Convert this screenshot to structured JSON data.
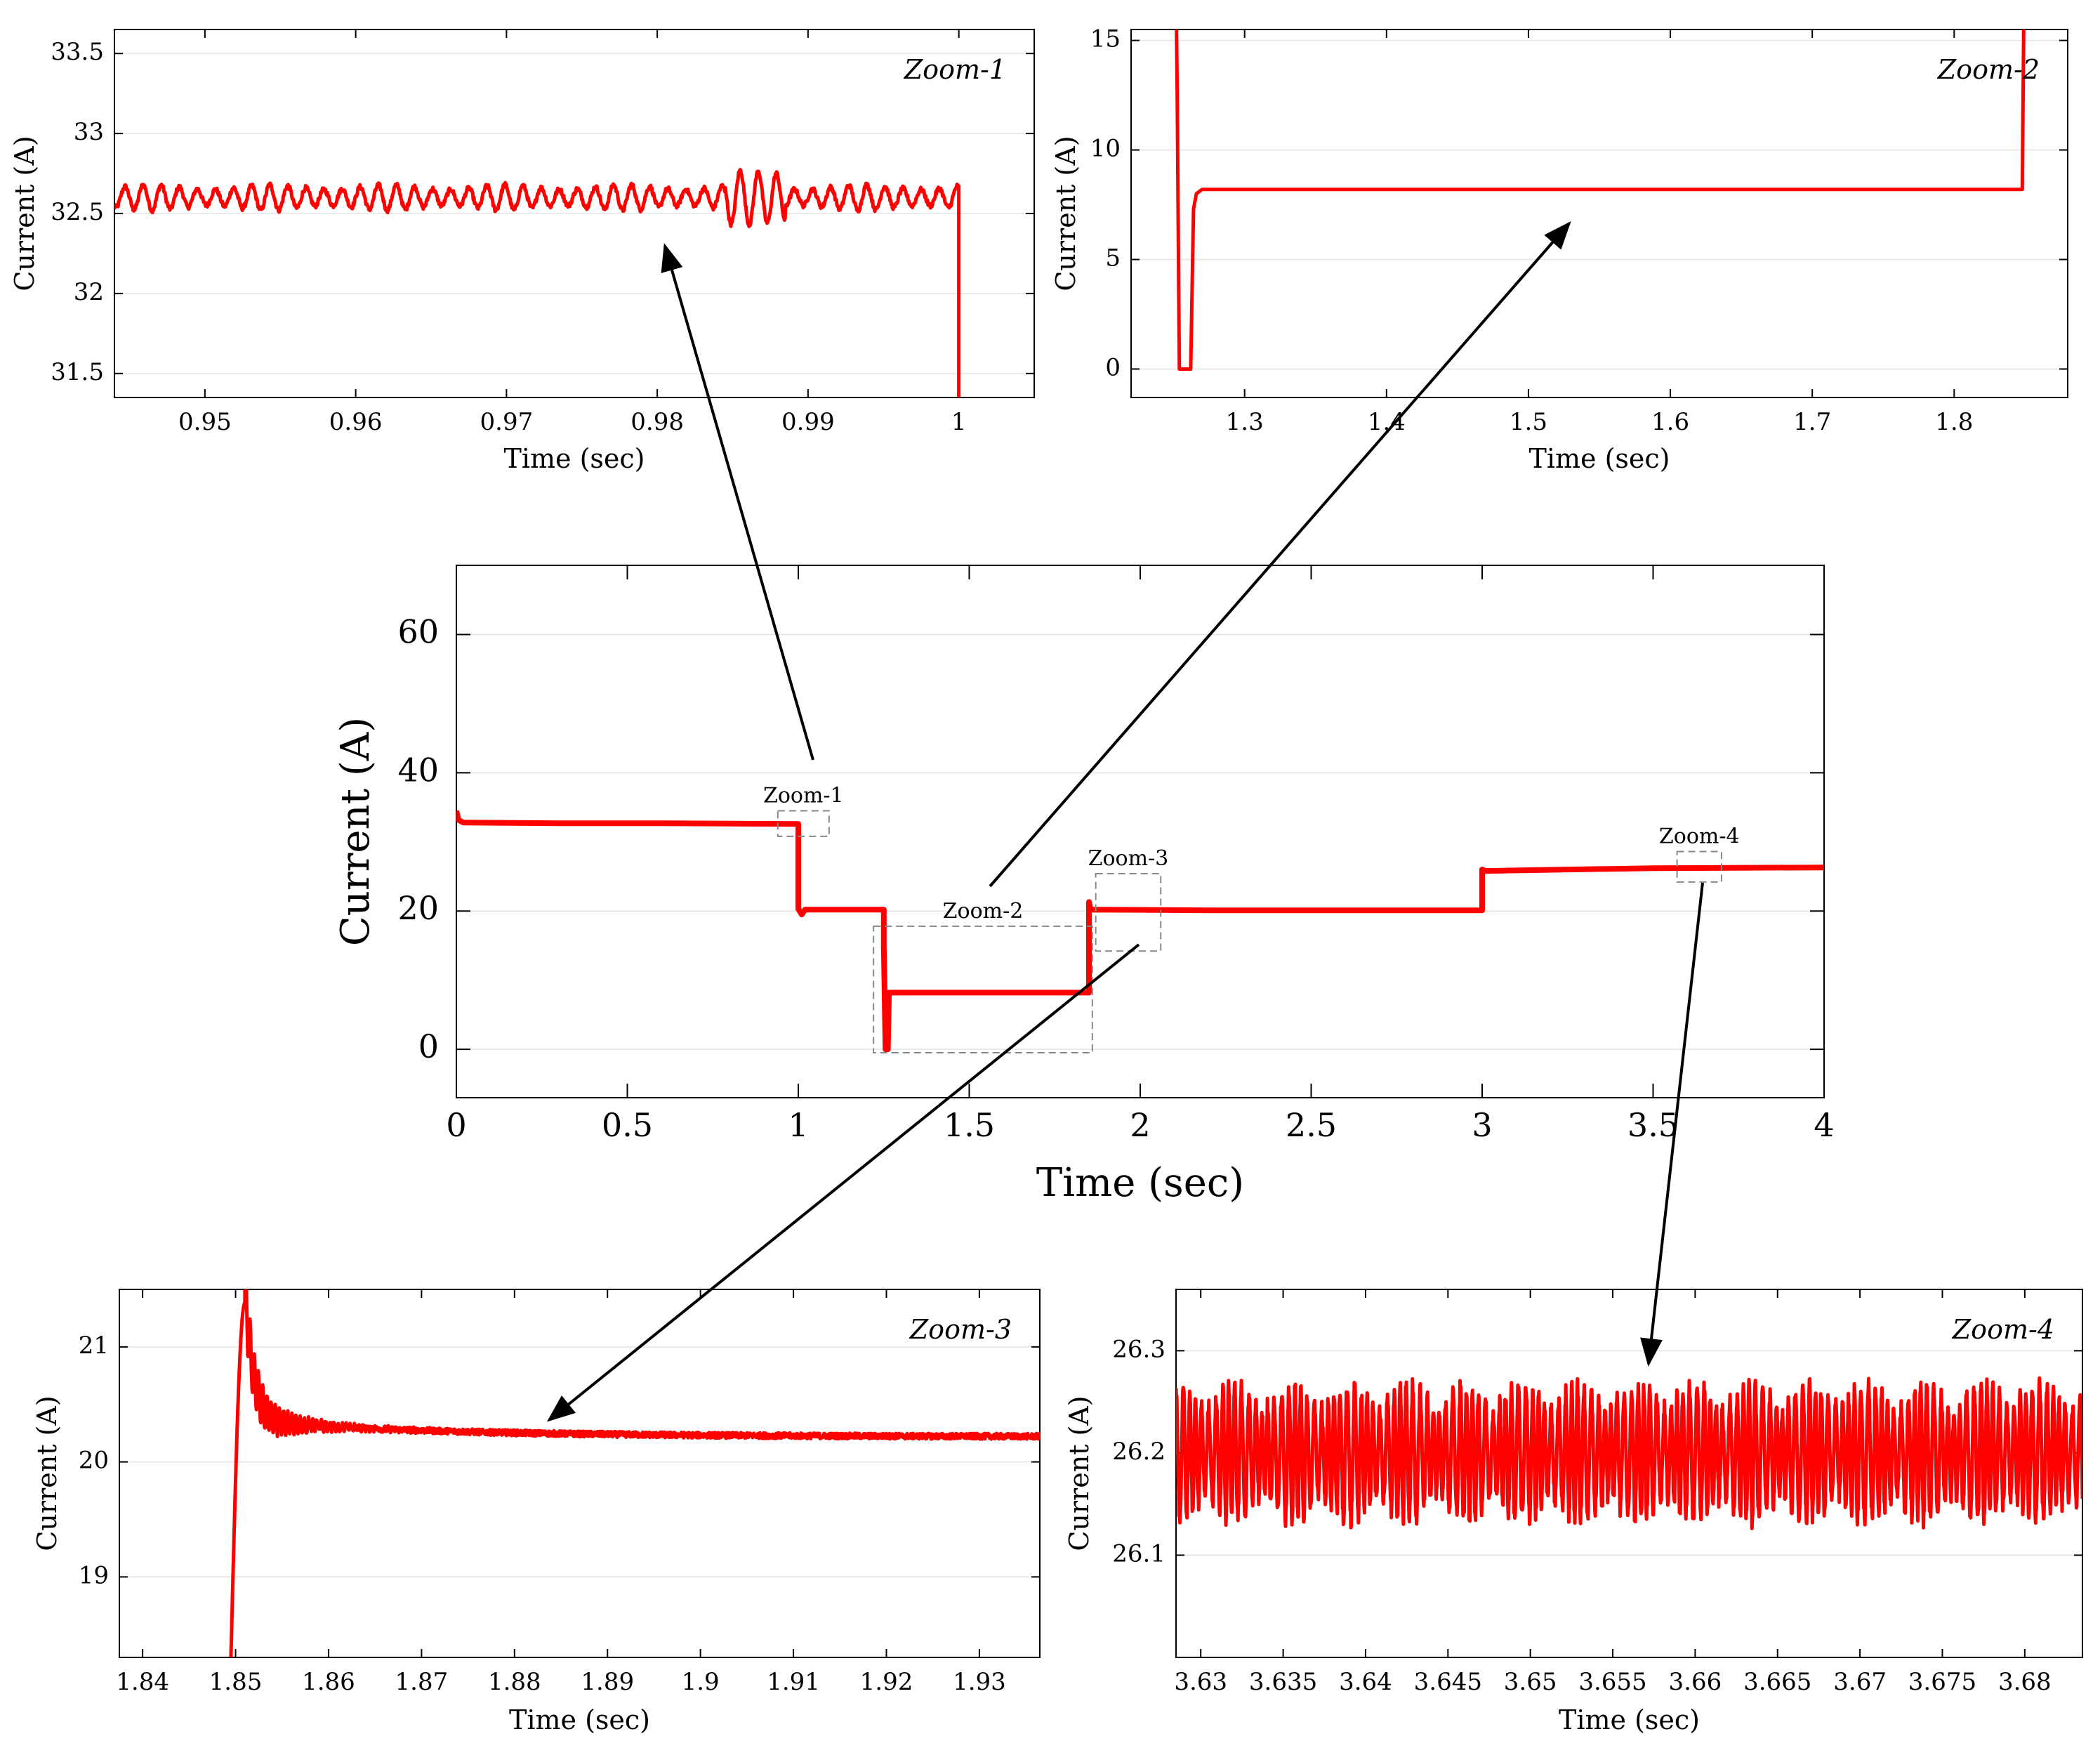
{
  "chart_data": [
    {
      "id": "main",
      "type": "line",
      "xlabel": "Time (sec)",
      "ylabel": "Current (A)",
      "xlim": [
        0,
        4
      ],
      "ylim": [
        -7,
        70
      ],
      "xticks": [
        0,
        0.5,
        1,
        1.5,
        2,
        2.5,
        3,
        3.5,
        4
      ],
      "xtick_labels": [
        "0",
        "0.5",
        "1",
        "1.5",
        "2",
        "2.5",
        "3",
        "3.5",
        "4"
      ],
      "yticks": [
        0,
        20,
        40,
        60
      ],
      "ytick_labels": [
        "0",
        "20",
        "40",
        "60"
      ],
      "grid": true,
      "series": [
        {
          "color": "#ff0000",
          "points": [
            [
              0,
              34.5
            ],
            [
              0.006,
              33.2
            ],
            [
              0.02,
              32.8
            ],
            [
              0.3,
              32.7
            ],
            [
              0.6,
              32.7
            ],
            [
              1.0,
              32.6
            ],
            [
              1.0,
              20.3
            ],
            [
              1.01,
              19.5
            ],
            [
              1.02,
              20.2
            ],
            [
              1.25,
              20.2
            ],
            [
              1.25,
              15.0
            ],
            [
              1.255,
              0.0
            ],
            [
              1.262,
              0.0
            ],
            [
              1.265,
              8.2
            ],
            [
              1.5,
              8.2
            ],
            [
              1.85,
              8.2
            ],
            [
              1.85,
              21.3
            ],
            [
              1.855,
              20.2
            ],
            [
              2.2,
              20.1
            ],
            [
              3.0,
              20.1
            ],
            [
              3.0,
              26.0
            ],
            [
              3.01,
              25.8
            ],
            [
              3.5,
              26.2
            ],
            [
              4.0,
              26.3
            ]
          ]
        }
      ],
      "regions": [
        {
          "label": "Zoom-1",
          "x": [
            0.94,
            1.09
          ],
          "y": [
            30.8,
            34.5
          ]
        },
        {
          "label": "Zoom-2",
          "x": [
            1.22,
            1.86
          ],
          "y": [
            -0.5,
            17.8
          ]
        },
        {
          "label": "Zoom-3",
          "x": [
            1.87,
            2.06
          ],
          "y": [
            14.2,
            25.4
          ]
        },
        {
          "label": "Zoom-4",
          "x": [
            3.57,
            3.7
          ],
          "y": [
            24.2,
            28.6
          ]
        }
      ]
    },
    {
      "id": "zoom1",
      "type": "line",
      "tag": "Zoom-1",
      "xlabel": "Time (sec)",
      "ylabel": "Current (A)",
      "xlim": [
        0.944,
        1.005
      ],
      "ylim": [
        31.35,
        33.65
      ],
      "xticks": [
        0.95,
        0.96,
        0.97,
        0.98,
        0.99,
        1.0
      ],
      "xtick_labels": [
        "0.95",
        "0.96",
        "0.97",
        "0.98",
        "0.99",
        "1"
      ],
      "yticks": [
        31.5,
        32,
        32.5,
        33,
        33.5
      ],
      "ytick_labels": [
        "31.5",
        "32",
        "32.5",
        "33",
        "33.5"
      ],
      "grid": true,
      "series": [
        {
          "color": "#ff0000",
          "base": 32.6,
          "ripple": 0.05,
          "ripple_period": 0.0012,
          "step_at": 1.0,
          "step_to": 31.35
        }
      ]
    },
    {
      "id": "zoom2",
      "type": "line",
      "tag": "Zoom-2",
      "xlabel": "Time (sec)",
      "ylabel": "Current (A)",
      "xlim": [
        1.22,
        1.88
      ],
      "ylim": [
        -1.3,
        15.5
      ],
      "xticks": [
        1.3,
        1.4,
        1.5,
        1.6,
        1.7,
        1.8
      ],
      "xtick_labels": [
        "1.3",
        "1.4",
        "1.5",
        "1.6",
        "1.7",
        "1.8"
      ],
      "yticks": [
        0,
        5,
        10,
        15
      ],
      "ytick_labels": [
        "0",
        "5",
        "10",
        "15"
      ],
      "grid": true,
      "series": [
        {
          "color": "#ff0000",
          "points": [
            [
              1.252,
              15.5
            ],
            [
              1.2525,
              12.5
            ],
            [
              1.254,
              0.0
            ],
            [
              1.262,
              0.0
            ],
            [
              1.264,
              7.3
            ],
            [
              1.266,
              8.0
            ],
            [
              1.27,
              8.2
            ],
            [
              1.5,
              8.2
            ],
            [
              1.848,
              8.2
            ],
            [
              1.849,
              15.5
            ]
          ]
        }
      ]
    },
    {
      "id": "zoom3",
      "type": "line",
      "tag": "Zoom-3",
      "xlabel": "Time (sec)",
      "ylabel": "Current (A)",
      "xlim": [
        1.8375,
        1.9365
      ],
      "ylim": [
        18.3,
        21.5
      ],
      "xticks": [
        1.84,
        1.85,
        1.86,
        1.87,
        1.88,
        1.89,
        1.9,
        1.91,
        1.92,
        1.93
      ],
      "xtick_labels": [
        "1.84",
        "1.85",
        "1.86",
        "1.87",
        "1.88",
        "1.89",
        "1.9",
        "1.91",
        "1.92",
        "1.93"
      ],
      "yticks": [
        19,
        20,
        21
      ],
      "ytick_labels": [
        "19",
        "20",
        "21"
      ],
      "grid": true,
      "series": [
        {
          "color": "#ff0000",
          "peak": 21.38,
          "start": 1.8495,
          "settle": 20.22
        }
      ]
    },
    {
      "id": "zoom4",
      "type": "line",
      "tag": "Zoom-4",
      "xlabel": "Time (sec)",
      "ylabel": "Current (A)",
      "xlim": [
        3.6285,
        3.6835
      ],
      "ylim": [
        26.0,
        26.36
      ],
      "xticks": [
        3.63,
        3.635,
        3.64,
        3.645,
        3.65,
        3.655,
        3.66,
        3.665,
        3.67,
        3.675,
        3.68
      ],
      "xtick_labels": [
        "3.63",
        "3.635",
        "3.64",
        "3.645",
        "3.65",
        "3.655",
        "3.66",
        "3.665",
        "3.67",
        "3.675",
        "3.68"
      ],
      "yticks": [
        26.1,
        26.2,
        26.3
      ],
      "ytick_labels": [
        "26.1",
        "26.2",
        "26.3"
      ],
      "grid": true,
      "series": [
        {
          "color": "#ff0000",
          "base": 26.2,
          "ripple": 0.05,
          "ripple_period": 0.0004
        }
      ]
    }
  ]
}
